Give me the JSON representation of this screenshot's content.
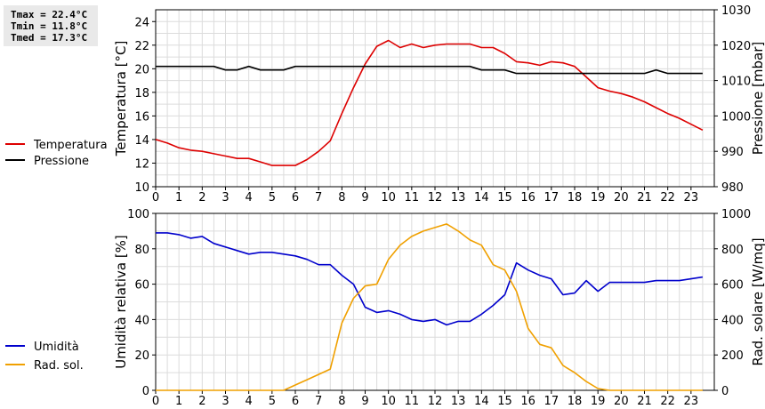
{
  "stats": {
    "tmax": "Tmax = 22.4°C",
    "tmin": "Tmin = 11.8°C",
    "tmed": "Tmed = 17.3°C"
  },
  "colors": {
    "temperature": "#dd0000",
    "pressure": "#000000",
    "humidity": "#0000cc",
    "solar": "#f0a000",
    "grid": "#dcdcdc",
    "plot_bg": "#ffffff"
  },
  "chart_data": [
    {
      "type": "line",
      "x_ticks": [
        0,
        1,
        2,
        3,
        4,
        5,
        6,
        7,
        8,
        9,
        10,
        11,
        12,
        13,
        14,
        15,
        16,
        17,
        18,
        19,
        20,
        21,
        22,
        23
      ],
      "xlim": [
        0,
        24
      ],
      "grid": true,
      "ylabel": "Temperatura [°C]",
      "ylim": [
        10,
        25
      ],
      "y_ticks": [
        10,
        12,
        14,
        16,
        18,
        20,
        22,
        24
      ],
      "y2label": "Pressione [mbar]",
      "y2lim": [
        980,
        1030
      ],
      "y2_ticks": [
        980,
        990,
        1000,
        1010,
        1020,
        1030
      ],
      "legend_position": "left",
      "series": [
        {
          "name": "Temperatura",
          "axis": "left",
          "color": "#dd0000",
          "x": [
            0,
            0.5,
            1,
            1.5,
            2,
            2.5,
            3,
            3.5,
            4,
            4.5,
            5,
            5.5,
            6,
            6.5,
            7,
            7.5,
            8,
            8.5,
            9,
            9.5,
            10,
            10.5,
            11,
            11.5,
            12,
            12.5,
            13,
            13.5,
            14,
            14.5,
            15,
            15.5,
            16,
            16.5,
            17,
            17.5,
            18,
            18.5,
            19,
            19.5,
            20,
            20.5,
            21,
            21.5,
            22,
            22.5,
            23,
            23.5
          ],
          "values": [
            14.0,
            13.7,
            13.3,
            13.1,
            13.0,
            12.8,
            12.6,
            12.4,
            12.4,
            12.1,
            11.8,
            11.8,
            11.8,
            12.3,
            13.0,
            13.9,
            16.2,
            18.4,
            20.4,
            21.9,
            22.4,
            21.8,
            22.1,
            21.8,
            22.0,
            22.1,
            22.1,
            22.1,
            21.8,
            21.8,
            21.3,
            20.6,
            20.5,
            20.3,
            20.6,
            20.5,
            20.2,
            19.3,
            18.4,
            18.1,
            17.9,
            17.6,
            17.2,
            16.7,
            16.2,
            15.8,
            15.3,
            14.8
          ]
        },
        {
          "name": "Pressione",
          "axis": "right",
          "color": "#000000",
          "x": [
            0,
            0.5,
            1,
            1.5,
            2,
            2.5,
            3,
            3.5,
            4,
            4.5,
            5,
            5.5,
            6,
            6.5,
            7,
            7.5,
            8,
            8.5,
            9,
            9.5,
            10,
            10.5,
            11,
            11.5,
            12,
            12.5,
            13,
            13.5,
            14,
            14.5,
            15,
            15.5,
            16,
            16.5,
            17,
            17.5,
            18,
            18.5,
            19,
            19.5,
            20,
            20.5,
            21,
            21.5,
            22,
            22.5,
            23,
            23.5
          ],
          "values": [
            1014,
            1014,
            1014,
            1014,
            1014,
            1014,
            1013,
            1013,
            1014,
            1013,
            1013,
            1013,
            1014,
            1014,
            1014,
            1014,
            1014,
            1014,
            1014,
            1014,
            1014,
            1014,
            1014,
            1014,
            1014,
            1014,
            1014,
            1014,
            1013,
            1013,
            1013,
            1012,
            1012,
            1012,
            1012,
            1012,
            1012,
            1012,
            1012,
            1012,
            1012,
            1012,
            1012,
            1013,
            1012,
            1012,
            1012,
            1012
          ]
        }
      ]
    },
    {
      "type": "line",
      "x_ticks": [
        0,
        1,
        2,
        3,
        4,
        5,
        6,
        7,
        8,
        9,
        10,
        11,
        12,
        13,
        14,
        15,
        16,
        17,
        18,
        19,
        20,
        21,
        22,
        23
      ],
      "xlim": [
        0,
        24
      ],
      "grid": true,
      "ylabel": "Umidità relativa [%]",
      "ylim": [
        0,
        100
      ],
      "y_ticks": [
        0,
        20,
        40,
        60,
        80,
        100
      ],
      "y2label": "Rad. solare [W/mq]",
      "y2lim": [
        0,
        1000
      ],
      "y2_ticks": [
        0,
        200,
        400,
        600,
        800,
        1000
      ],
      "legend_position": "left",
      "series": [
        {
          "name": "Umidità",
          "axis": "left",
          "color": "#0000cc",
          "x": [
            0,
            0.5,
            1,
            1.5,
            2,
            2.5,
            3,
            3.5,
            4,
            4.5,
            5,
            5.5,
            6,
            6.5,
            7,
            7.5,
            8,
            8.5,
            9,
            9.5,
            10,
            10.5,
            11,
            11.5,
            12,
            12.5,
            13,
            13.5,
            14,
            14.5,
            15,
            15.5,
            16,
            16.5,
            17,
            17.5,
            18,
            18.5,
            19,
            19.5,
            20,
            20.5,
            21,
            21.5,
            22,
            22.5,
            23,
            23.5
          ],
          "values": [
            89,
            89,
            88,
            86,
            87,
            83,
            81,
            79,
            77,
            78,
            78,
            77,
            76,
            74,
            71,
            71,
            65,
            60,
            47,
            44,
            45,
            43,
            40,
            39,
            40,
            37,
            39,
            39,
            43,
            48,
            54,
            72,
            68,
            65,
            63,
            54,
            55,
            62,
            56,
            61,
            61,
            61,
            61,
            62,
            62,
            62,
            63,
            64
          ]
        },
        {
          "name": "Rad. sol.",
          "axis": "right",
          "color": "#f0a000",
          "x": [
            0,
            0.5,
            1,
            1.5,
            2,
            2.5,
            3,
            3.5,
            4,
            4.5,
            5,
            5.5,
            6,
            6.5,
            7,
            7.5,
            8,
            8.5,
            9,
            9.5,
            10,
            10.5,
            11,
            11.5,
            12,
            12.5,
            13,
            13.5,
            14,
            14.5,
            15,
            15.5,
            16,
            16.5,
            17,
            17.5,
            18,
            18.5,
            19,
            19.5,
            20,
            20.5,
            21,
            21.5,
            22,
            22.5,
            23,
            23.5
          ],
          "values": [
            0,
            0,
            0,
            0,
            0,
            0,
            0,
            0,
            0,
            0,
            0,
            0,
            30,
            60,
            90,
            120,
            380,
            520,
            590,
            600,
            740,
            820,
            870,
            900,
            920,
            940,
            900,
            850,
            820,
            710,
            680,
            560,
            350,
            260,
            240,
            140,
            100,
            50,
            10,
            0,
            0,
            0,
            0,
            0,
            0,
            0,
            0,
            0
          ]
        }
      ]
    }
  ]
}
